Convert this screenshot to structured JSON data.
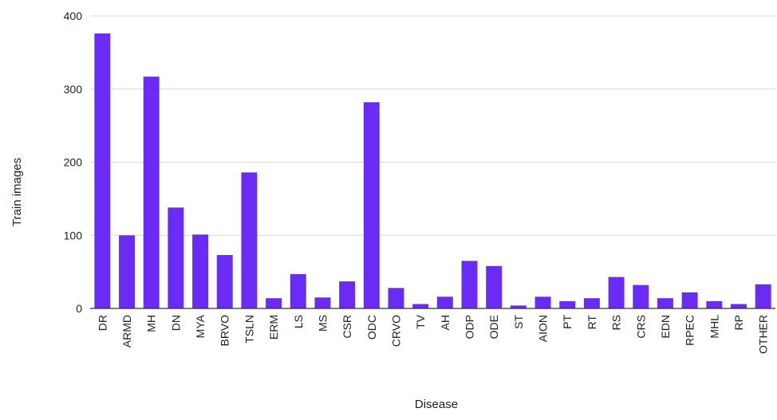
{
  "chart_data": {
    "type": "bar",
    "xlabel": "Disease",
    "ylabel": "Train images",
    "ylim": [
      0,
      400
    ],
    "yticks": [
      0,
      100,
      200,
      300,
      400
    ],
    "grid": true,
    "bar_color": "#6a2cf5",
    "gridline_color": "#d9d9d9",
    "axis_color": "#333333",
    "categories": [
      "DR",
      "ARMD",
      "MH",
      "DN",
      "MYA",
      "BRVO",
      "TSLN",
      "ERM",
      "LS",
      "MS",
      "CSR",
      "ODC",
      "CRVO",
      "TV",
      "AH",
      "ODP",
      "ODE",
      "ST",
      "AION",
      "PT",
      "RT",
      "RS",
      "CRS",
      "EDN",
      "RPEC",
      "MHL",
      "RP",
      "OTHER"
    ],
    "values": [
      376,
      100,
      317,
      138,
      101,
      73,
      186,
      14,
      47,
      15,
      37,
      282,
      28,
      6,
      16,
      65,
      58,
      4,
      16,
      10,
      14,
      43,
      32,
      14,
      22,
      10,
      6,
      33
    ]
  }
}
